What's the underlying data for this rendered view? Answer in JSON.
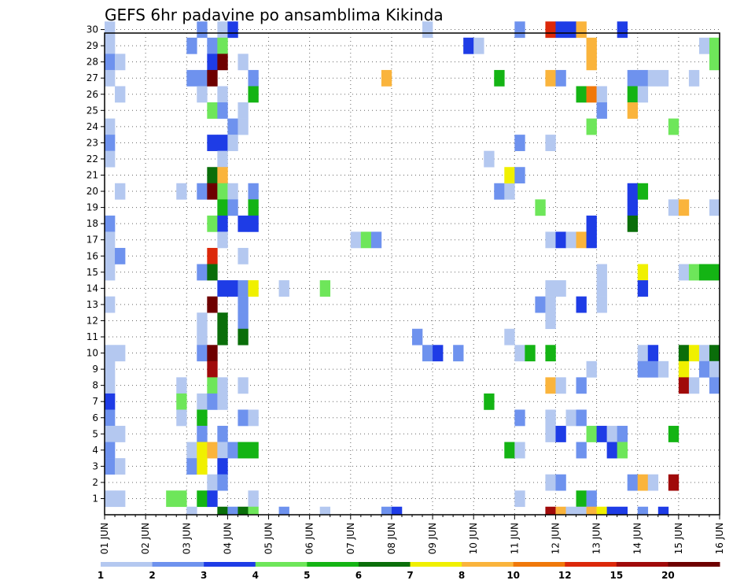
{
  "chart_data": {
    "type": "heatmap",
    "title": "GEFS 6hr padavine po ansamblima Kikinda",
    "x_axis": {
      "tick_labels": [
        "01 JUN",
        "02 JUN",
        "03 JUN",
        "04 JUN",
        "05 JUN",
        "06 JUN",
        "07 JUN",
        "08 JUN",
        "09 JUN",
        "10 JUN",
        "11 JUN",
        "12 JUN",
        "13 JUN",
        "14 JUN",
        "15 JUN",
        "16 JUN"
      ],
      "range_days": [
        0,
        15
      ]
    },
    "y_axis": {
      "tick_labels": [
        "1",
        "2",
        "3",
        "4",
        "5",
        "6",
        "7",
        "8",
        "9",
        "10",
        "11",
        "12",
        "13",
        "14",
        "15",
        "16",
        "17",
        "18",
        "19",
        "20",
        "21",
        "22",
        "23",
        "24",
        "25",
        "26",
        "27",
        "28",
        "29",
        "30"
      ],
      "range": [
        0,
        30
      ]
    },
    "grid": "dotted",
    "legend": {
      "placement": "bottom",
      "colors": [
        "#b4c8f0",
        "#6e92ee",
        "#1e3ce6",
        "#6ee65a",
        "#14b414",
        "#0a6e0a",
        "#f0f000",
        "#fab43c",
        "#f0780a",
        "#dc280a",
        "#a00a0a",
        "#6e0000"
      ],
      "labels": [
        "1",
        "2",
        "3",
        "4",
        "5",
        "6",
        "7",
        "8",
        "10",
        "12",
        "15",
        "20"
      ]
    },
    "cells": [
      [
        0.0,
        30,
        0
      ],
      [
        0.0,
        29,
        0
      ],
      [
        0.0,
        28,
        1
      ],
      [
        0.0,
        27,
        0
      ],
      [
        0.0,
        24,
        0
      ],
      [
        0.0,
        23,
        1
      ],
      [
        0.0,
        22,
        0
      ],
      [
        0.0,
        18,
        1
      ],
      [
        0.0,
        17,
        0
      ],
      [
        0.0,
        16,
        0
      ],
      [
        0.0,
        15,
        0
      ],
      [
        0.0,
        13,
        0
      ],
      [
        0.0,
        10,
        0
      ],
      [
        0.0,
        9,
        0
      ],
      [
        0.0,
        8,
        0
      ],
      [
        0.0,
        7,
        2
      ],
      [
        0.0,
        6,
        1
      ],
      [
        0.0,
        5,
        0
      ],
      [
        0.0,
        4,
        1
      ],
      [
        0.0,
        3,
        1
      ],
      [
        0.0,
        1,
        0
      ],
      [
        0.25,
        28,
        0
      ],
      [
        0.25,
        26,
        0
      ],
      [
        0.25,
        20,
        0
      ],
      [
        0.25,
        16,
        1
      ],
      [
        0.25,
        10,
        0
      ],
      [
        0.25,
        5,
        0
      ],
      [
        0.25,
        3,
        0
      ],
      [
        0.25,
        1,
        0
      ],
      [
        1.5,
        1,
        3
      ],
      [
        1.75,
        1,
        3
      ],
      [
        1.75,
        20,
        0
      ],
      [
        1.75,
        8,
        0
      ],
      [
        1.75,
        7,
        3
      ],
      [
        1.75,
        6,
        0
      ],
      [
        2.0,
        29,
        1
      ],
      [
        2.0,
        27,
        1
      ],
      [
        2.0,
        4,
        0
      ],
      [
        2.0,
        3,
        1
      ],
      [
        2.25,
        30,
        1
      ],
      [
        2.25,
        27,
        1
      ],
      [
        2.25,
        26,
        0
      ],
      [
        2.25,
        20,
        1
      ],
      [
        2.25,
        15,
        1
      ],
      [
        2.25,
        12,
        0
      ],
      [
        2.25,
        11,
        0
      ],
      [
        2.25,
        10,
        1
      ],
      [
        2.25,
        7,
        0
      ],
      [
        2.25,
        6,
        4
      ],
      [
        2.25,
        5,
        1
      ],
      [
        2.25,
        4,
        6
      ],
      [
        2.25,
        3,
        6
      ],
      [
        2.25,
        1,
        4
      ],
      [
        2.5,
        29,
        1
      ],
      [
        2.5,
        28,
        2
      ],
      [
        2.5,
        27,
        11
      ],
      [
        2.5,
        25,
        3
      ],
      [
        2.5,
        23,
        2
      ],
      [
        2.5,
        21,
        5
      ],
      [
        2.5,
        20,
        11
      ],
      [
        2.5,
        18,
        3
      ],
      [
        2.5,
        16,
        9
      ],
      [
        2.5,
        15,
        5
      ],
      [
        2.5,
        13,
        11
      ],
      [
        2.5,
        10,
        11
      ],
      [
        2.5,
        9,
        10
      ],
      [
        2.5,
        8,
        3
      ],
      [
        2.5,
        7,
        1
      ],
      [
        2.5,
        4,
        7
      ],
      [
        2.5,
        2,
        0
      ],
      [
        2.5,
        1,
        2
      ],
      [
        2.75,
        30,
        0
      ],
      [
        2.75,
        29,
        3
      ],
      [
        2.75,
        28,
        11
      ],
      [
        2.75,
        26,
        0
      ],
      [
        2.75,
        25,
        1
      ],
      [
        2.75,
        23,
        2
      ],
      [
        2.75,
        22,
        0
      ],
      [
        2.75,
        21,
        7
      ],
      [
        2.75,
        20,
        3
      ],
      [
        2.75,
        19,
        4
      ],
      [
        2.75,
        18,
        2
      ],
      [
        2.75,
        17,
        0
      ],
      [
        2.75,
        14,
        2
      ],
      [
        2.75,
        12,
        5
      ],
      [
        2.75,
        11,
        5
      ],
      [
        2.75,
        8,
        0
      ],
      [
        2.75,
        7,
        0
      ],
      [
        2.75,
        5,
        1
      ],
      [
        2.75,
        4,
        0
      ],
      [
        2.75,
        3,
        2
      ],
      [
        2.75,
        2,
        1
      ],
      [
        3.0,
        30,
        2
      ],
      [
        3.0,
        24,
        1
      ],
      [
        3.0,
        23,
        0
      ],
      [
        3.0,
        20,
        0
      ],
      [
        3.0,
        19,
        1
      ],
      [
        3.0,
        14,
        2
      ],
      [
        3.0,
        4,
        1
      ],
      [
        3.25,
        28,
        0
      ],
      [
        3.25,
        25,
        0
      ],
      [
        3.25,
        24,
        0
      ],
      [
        3.25,
        18,
        2
      ],
      [
        3.25,
        16,
        0
      ],
      [
        3.25,
        14,
        1
      ],
      [
        3.25,
        13,
        1
      ],
      [
        3.25,
        12,
        1
      ],
      [
        3.25,
        11,
        5
      ],
      [
        3.25,
        8,
        0
      ],
      [
        3.25,
        6,
        1
      ],
      [
        3.25,
        4,
        4
      ],
      [
        3.5,
        27,
        1
      ],
      [
        3.5,
        26,
        4
      ],
      [
        3.5,
        20,
        1
      ],
      [
        3.5,
        19,
        4
      ],
      [
        3.5,
        18,
        2
      ],
      [
        3.5,
        14,
        6
      ],
      [
        3.5,
        6,
        0
      ],
      [
        3.5,
        4,
        4
      ],
      [
        3.5,
        1,
        0
      ],
      [
        4.25,
        14,
        0
      ],
      [
        5.25,
        14,
        3
      ],
      [
        6.0,
        17,
        0
      ],
      [
        6.25,
        17,
        3
      ],
      [
        6.5,
        17,
        1
      ],
      [
        6.75,
        27,
        7
      ],
      [
        7.5,
        11,
        1
      ],
      [
        7.75,
        10,
        1
      ],
      [
        7.75,
        30,
        0
      ],
      [
        8.0,
        10,
        2
      ],
      [
        8.5,
        10,
        1
      ],
      [
        8.75,
        29,
        2
      ],
      [
        9.0,
        29,
        0
      ],
      [
        9.25,
        22,
        0
      ],
      [
        9.25,
        7,
        4
      ],
      [
        9.5,
        27,
        4
      ],
      [
        9.5,
        20,
        1
      ],
      [
        9.75,
        20,
        0
      ],
      [
        9.75,
        21,
        6
      ],
      [
        9.75,
        4,
        4
      ],
      [
        9.75,
        11,
        0
      ],
      [
        10.0,
        30,
        1
      ],
      [
        10.0,
        23,
        1
      ],
      [
        10.0,
        21,
        1
      ],
      [
        10.0,
        10,
        0
      ],
      [
        10.0,
        6,
        1
      ],
      [
        10.0,
        4,
        0
      ],
      [
        10.0,
        1,
        0
      ],
      [
        10.25,
        10,
        4
      ],
      [
        10.5,
        19,
        3
      ],
      [
        10.5,
        13,
        1
      ],
      [
        10.75,
        23,
        0
      ],
      [
        10.75,
        17,
        0
      ],
      [
        10.75,
        14,
        0
      ],
      [
        10.75,
        13,
        0
      ],
      [
        10.75,
        12,
        0
      ],
      [
        10.75,
        10,
        4
      ],
      [
        10.75,
        8,
        7
      ],
      [
        10.75,
        6,
        0
      ],
      [
        10.75,
        5,
        0
      ],
      [
        10.75,
        2,
        0
      ],
      [
        10.75,
        30,
        9
      ],
      [
        10.75,
        27,
        7
      ],
      [
        11.0,
        30,
        2
      ],
      [
        11.0,
        27,
        1
      ],
      [
        11.0,
        17,
        2
      ],
      [
        11.0,
        14,
        0
      ],
      [
        11.0,
        8,
        0
      ],
      [
        11.0,
        5,
        2
      ],
      [
        11.0,
        2,
        1
      ],
      [
        11.25,
        30,
        2
      ],
      [
        11.25,
        17,
        0
      ],
      [
        11.25,
        6,
        0
      ],
      [
        11.5,
        30,
        7
      ],
      [
        11.5,
        26,
        4
      ],
      [
        11.5,
        17,
        7
      ],
      [
        11.5,
        13,
        2
      ],
      [
        11.5,
        8,
        1
      ],
      [
        11.5,
        6,
        1
      ],
      [
        11.5,
        4,
        1
      ],
      [
        11.5,
        1,
        4
      ],
      [
        11.75,
        29,
        7
      ],
      [
        11.75,
        28,
        7
      ],
      [
        11.75,
        26,
        8
      ],
      [
        11.75,
        24,
        3
      ],
      [
        11.75,
        18,
        2
      ],
      [
        11.75,
        17,
        2
      ],
      [
        11.75,
        9,
        0
      ],
      [
        11.75,
        5,
        3
      ],
      [
        11.75,
        1,
        1
      ],
      [
        12.0,
        26,
        0
      ],
      [
        12.0,
        25,
        1
      ],
      [
        12.0,
        15,
        0
      ],
      [
        12.0,
        14,
        0
      ],
      [
        12.0,
        13,
        0
      ],
      [
        12.0,
        5,
        2
      ],
      [
        12.25,
        5,
        0
      ],
      [
        12.25,
        4,
        2
      ],
      [
        12.5,
        30,
        2
      ],
      [
        12.5,
        5,
        1
      ],
      [
        12.5,
        4,
        3
      ],
      [
        12.75,
        27,
        1
      ],
      [
        12.75,
        26,
        4
      ],
      [
        12.75,
        25,
        7
      ],
      [
        12.75,
        20,
        2
      ],
      [
        12.75,
        19,
        2
      ],
      [
        12.75,
        18,
        5
      ],
      [
        12.75,
        2,
        1
      ],
      [
        13.0,
        27,
        1
      ],
      [
        13.0,
        26,
        0
      ],
      [
        13.0,
        20,
        4
      ],
      [
        13.0,
        15,
        6
      ],
      [
        13.0,
        14,
        2
      ],
      [
        13.0,
        10,
        0
      ],
      [
        13.0,
        9,
        1
      ],
      [
        13.0,
        2,
        7
      ],
      [
        13.25,
        27,
        0
      ],
      [
        13.25,
        10,
        2
      ],
      [
        13.25,
        9,
        1
      ],
      [
        13.25,
        2,
        0
      ],
      [
        13.5,
        27,
        0
      ],
      [
        13.5,
        9,
        0
      ],
      [
        13.75,
        24,
        3
      ],
      [
        13.75,
        19,
        0
      ],
      [
        13.75,
        5,
        4
      ],
      [
        13.75,
        2,
        10
      ],
      [
        14.0,
        19,
        7
      ],
      [
        14.0,
        15,
        0
      ],
      [
        14.0,
        10,
        5
      ],
      [
        14.0,
        9,
        6
      ],
      [
        14.0,
        8,
        10
      ],
      [
        14.25,
        27,
        0
      ],
      [
        14.25,
        15,
        3
      ],
      [
        14.25,
        10,
        6
      ],
      [
        14.25,
        8,
        0
      ],
      [
        14.5,
        29,
        0
      ],
      [
        14.5,
        15,
        4
      ],
      [
        14.5,
        10,
        0
      ],
      [
        14.5,
        9,
        1
      ],
      [
        14.75,
        29,
        3
      ],
      [
        14.75,
        28,
        3
      ],
      [
        14.75,
        19,
        0
      ],
      [
        14.75,
        15,
        4
      ],
      [
        14.75,
        10,
        5
      ],
      [
        14.75,
        9,
        0
      ],
      [
        14.75,
        8,
        1
      ]
    ],
    "bottom_row": [
      [
        2.0,
        0
      ],
      [
        2.75,
        5
      ],
      [
        3.0,
        1
      ],
      [
        3.25,
        5
      ],
      [
        3.5,
        3
      ],
      [
        4.25,
        1
      ],
      [
        5.25,
        0
      ],
      [
        6.75,
        1
      ],
      [
        7.0,
        2
      ],
      [
        10.75,
        10
      ],
      [
        11.0,
        7
      ],
      [
        11.25,
        0
      ],
      [
        11.5,
        0
      ],
      [
        11.75,
        7
      ],
      [
        12.0,
        6
      ],
      [
        12.25,
        2
      ],
      [
        12.5,
        2
      ],
      [
        13.0,
        1
      ],
      [
        13.5,
        2
      ]
    ]
  }
}
